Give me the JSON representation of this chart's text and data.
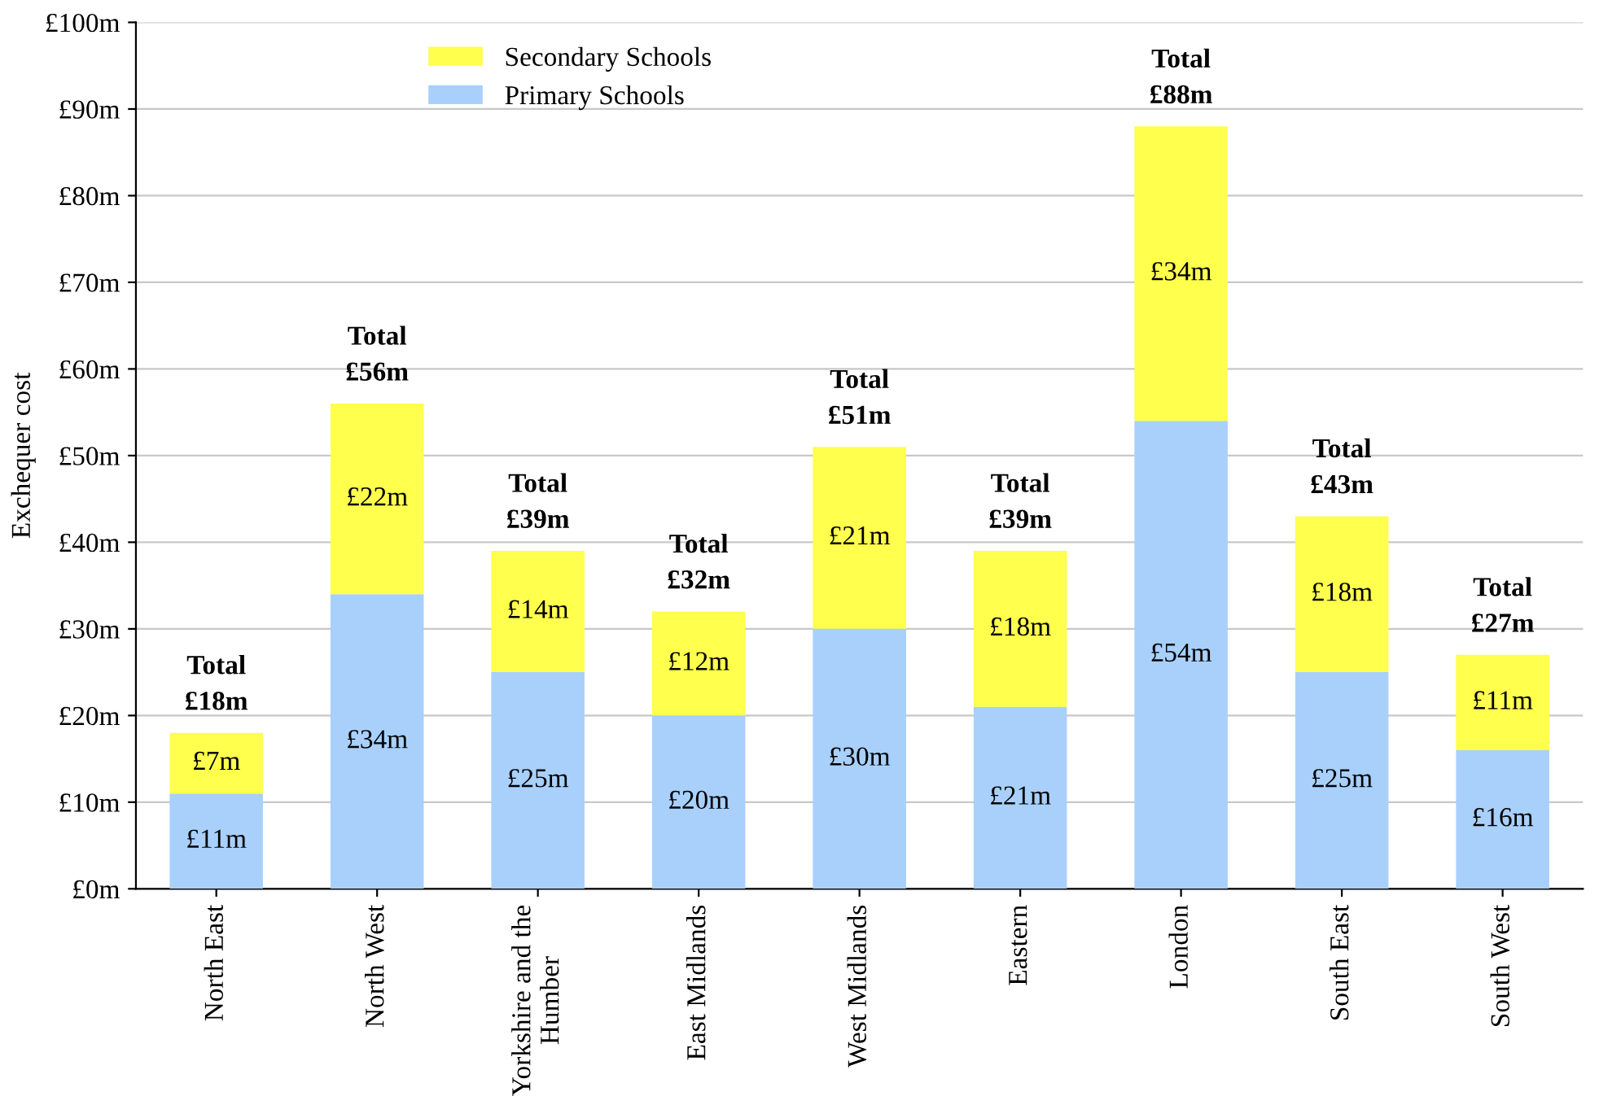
{
  "chart_data": {
    "type": "bar",
    "stacked": true,
    "ylabel": "Exchequer cost",
    "categories": [
      "North East",
      "North West",
      "Yorkshire and the\nHumber",
      "East Midlands",
      "West Midlands",
      "Eastern",
      "London",
      "South East",
      "South West"
    ],
    "series": [
      {
        "name": "Primary Schools",
        "color": "#a8d0fb",
        "values": [
          11,
          34,
          25,
          20,
          30,
          21,
          54,
          25,
          16
        ],
        "value_labels": [
          "£11m",
          "£34m",
          "£25m",
          "£20m",
          "£30m",
          "£21m",
          "£54m",
          "£25m",
          "£16m"
        ]
      },
      {
        "name": "Secondary Schools",
        "color": "#ffff4d",
        "values": [
          7,
          22,
          14,
          12,
          21,
          18,
          34,
          18,
          11
        ],
        "value_labels": [
          "£7m",
          "£22m",
          "£14m",
          "£12m",
          "£21m",
          "£18m",
          "£34m",
          "£18m",
          "£11m"
        ]
      }
    ],
    "totals": [
      "Total\n£18m",
      "Total\n£56m",
      "Total\n£39m",
      "Total\n£32m",
      "Total\n£51m",
      "Total\n£39m",
      "Total\n£88m",
      "Total\n£43m",
      "Total\n£27m"
    ],
    "ylim": [
      0,
      100
    ],
    "yticks": [
      {
        "value": 0,
        "label": "£0m"
      },
      {
        "value": 10,
        "label": "£10m"
      },
      {
        "value": 20,
        "label": "£20m"
      },
      {
        "value": 30,
        "label": "£30m"
      },
      {
        "value": 40,
        "label": "£40m"
      },
      {
        "value": 50,
        "label": "£50m"
      },
      {
        "value": 60,
        "label": "£60m"
      },
      {
        "value": 70,
        "label": "£70m"
      },
      {
        "value": 80,
        "label": "£80m"
      },
      {
        "value": 90,
        "label": "£90m"
      },
      {
        "value": 100,
        "label": "£100m"
      }
    ],
    "grid": "y",
    "legend": "top"
  }
}
